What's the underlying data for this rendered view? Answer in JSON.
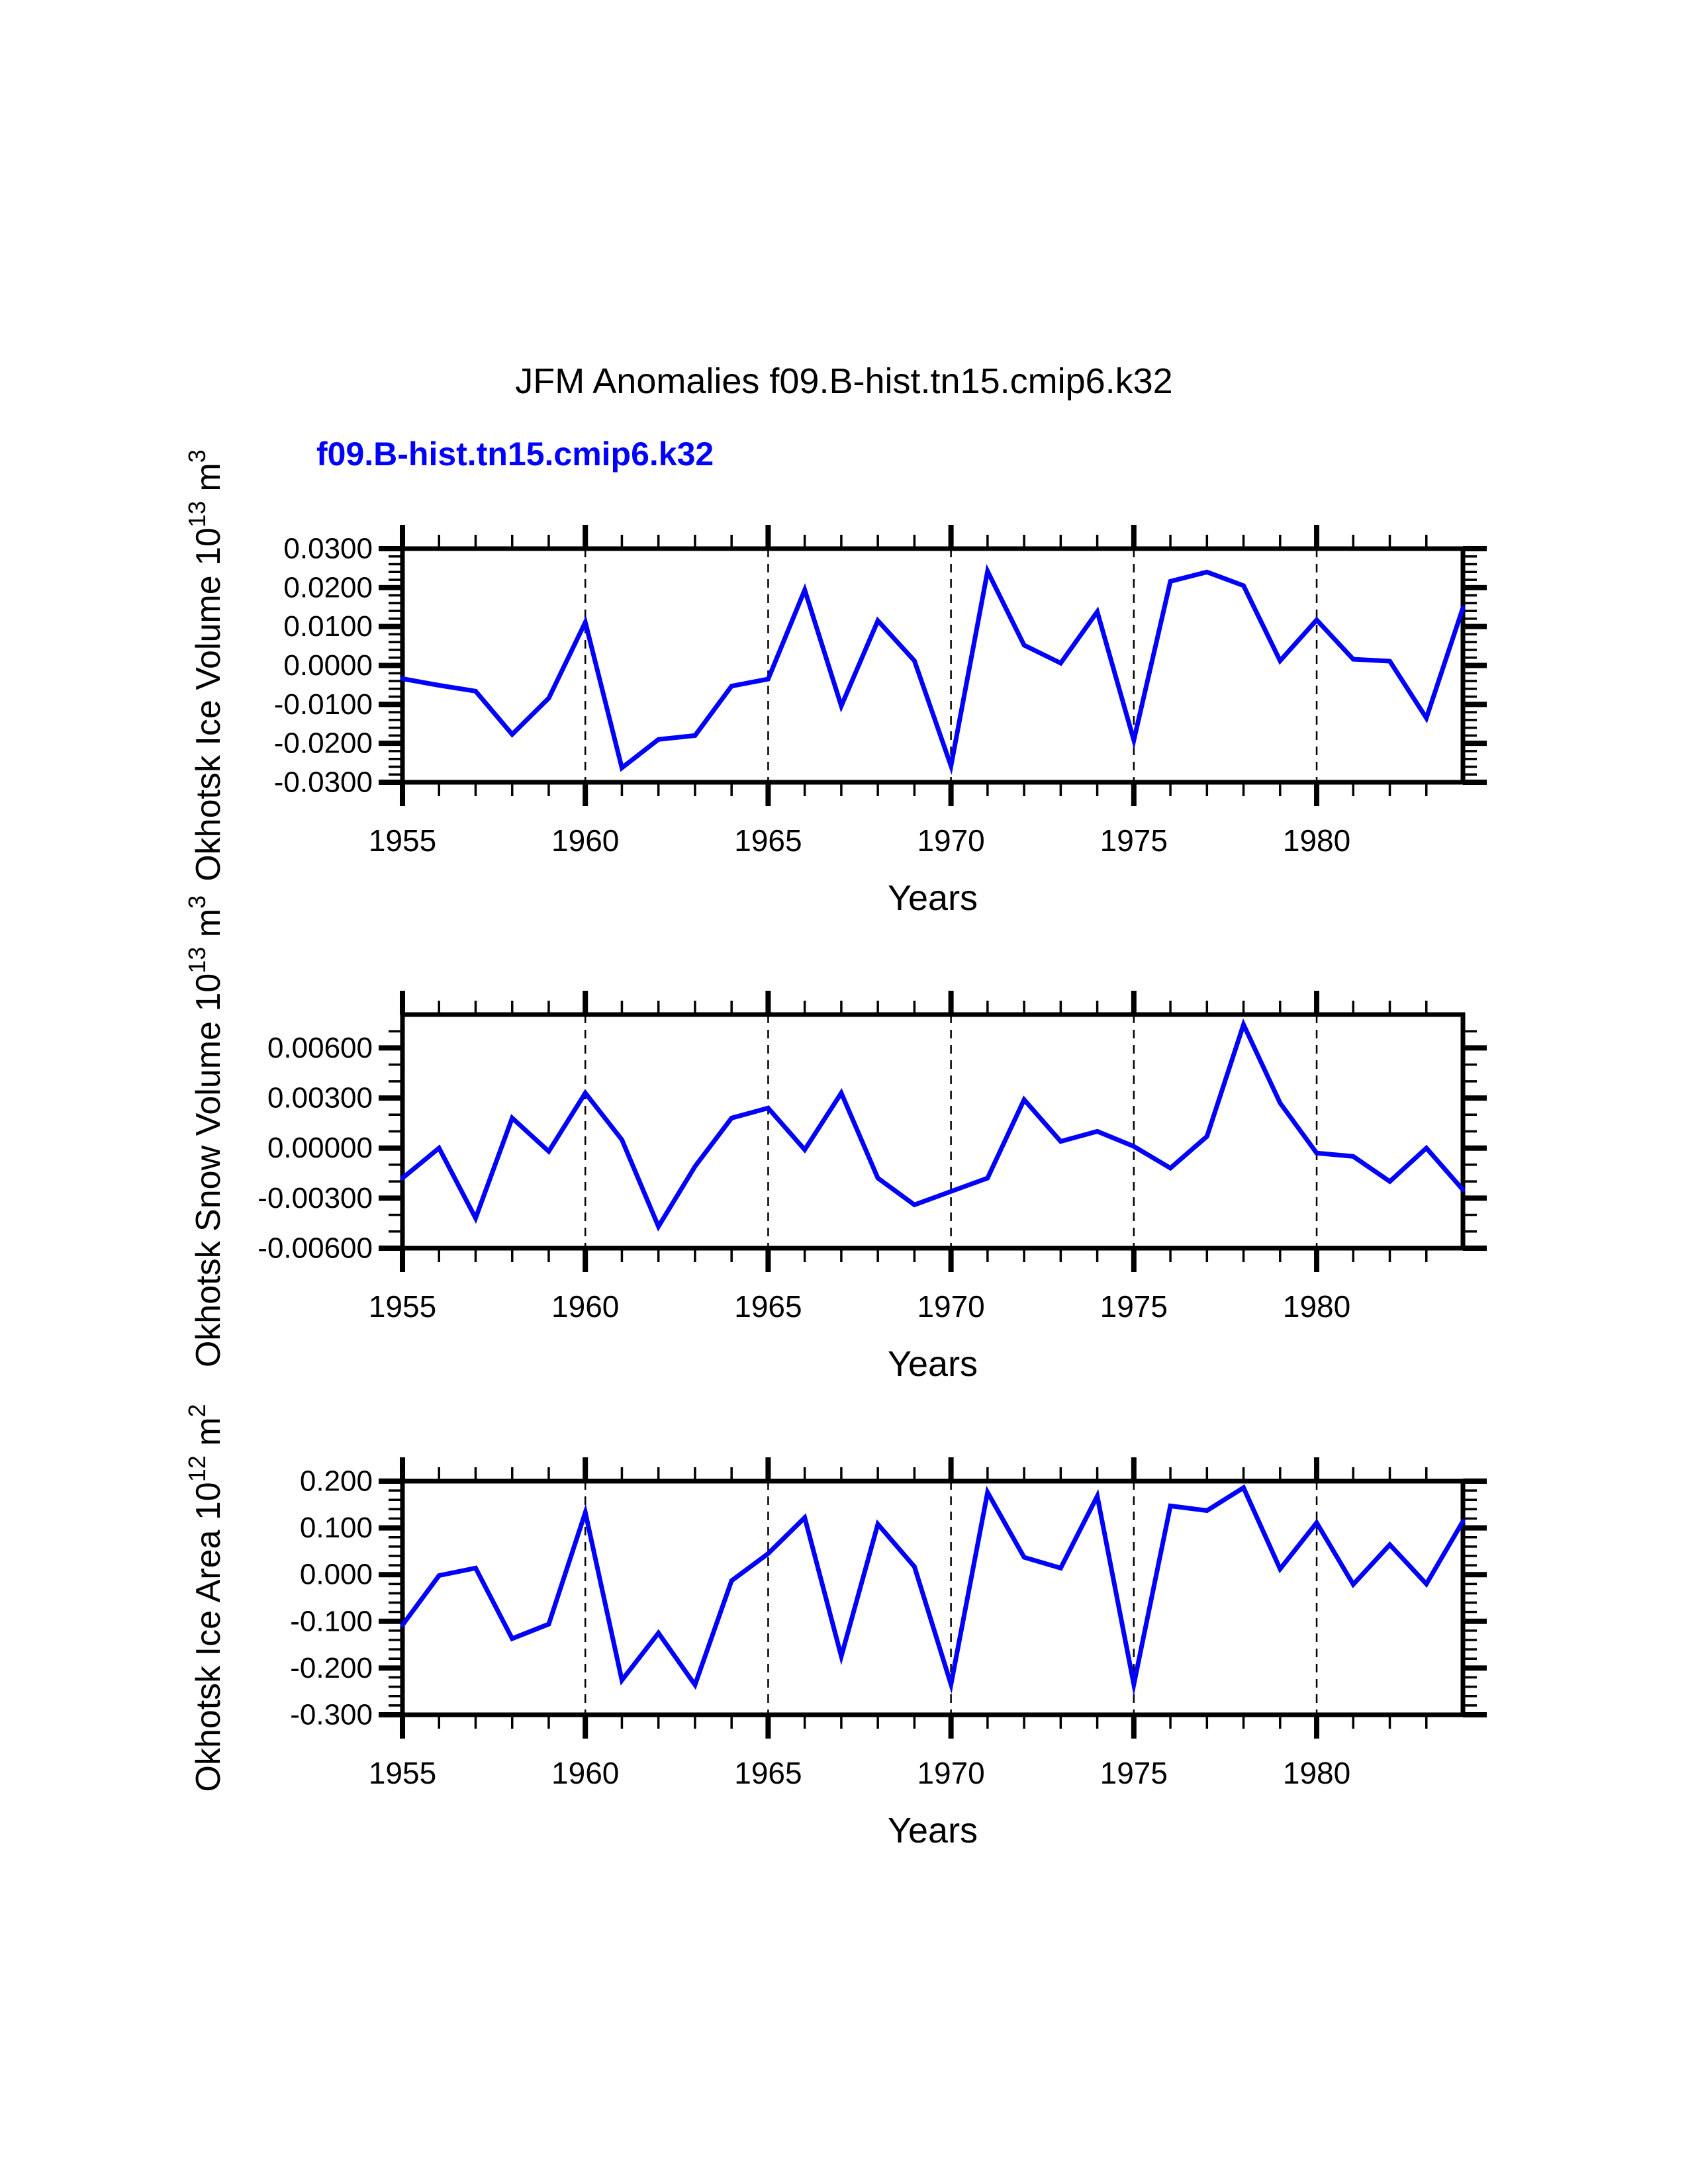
{
  "page": {
    "title": "JFM Anomalies f09.B-hist.tn15.cmip6.k32",
    "subtitle": "f09.B-hist.tn15.cmip6.k32",
    "background_color": "#ffffff",
    "accent_color": "#0000ff",
    "axis_color": "#000000"
  },
  "chart_data": [
    {
      "type": "line",
      "name": "okhotsk-ice-volume",
      "ylabel_parts": [
        {
          "text": "Okhotsk Ice Volume 10"
        },
        {
          "text": "13",
          "sup": true
        },
        {
          "text": " m"
        },
        {
          "text": "3",
          "sup": true
        }
      ],
      "xlabel": "Years",
      "xlim": [
        1955,
        1984
      ],
      "ylim": [
        -0.03,
        0.03
      ],
      "x_major_ticks": [
        1955,
        1960,
        1965,
        1970,
        1975,
        1980
      ],
      "x_tick_labels": [
        "1955",
        "1960",
        "1965",
        "1970",
        "1975",
        "1980"
      ],
      "x_minor_step": 1,
      "y_major_ticks": [
        -0.03,
        -0.02,
        -0.01,
        0,
        0.01,
        0.02,
        0.03
      ],
      "y_tick_labels": [
        "-0.0300",
        "-0.0200",
        "-0.0100",
        "0.0000",
        "0.0100",
        "0.0200",
        "0.0300"
      ],
      "y_minor_step": 0.002,
      "gridlines_x": [
        1960,
        1965,
        1970,
        1975,
        1980
      ],
      "grid": true,
      "legend": "none",
      "line_color": "#0000ff",
      "x": [
        1955,
        1956,
        1957,
        1958,
        1959,
        1960,
        1961,
        1962,
        1963,
        1964,
        1965,
        1966,
        1967,
        1968,
        1969,
        1970,
        1971,
        1972,
        1973,
        1974,
        1975,
        1976,
        1977,
        1978,
        1979,
        1980,
        1981,
        1982,
        1983,
        1984
      ],
      "values": [
        -0.0034,
        -0.0051,
        -0.0066,
        -0.0177,
        -0.0084,
        0.0111,
        -0.0263,
        -0.019,
        -0.018,
        -0.0053,
        -0.0035,
        0.0194,
        -0.0104,
        0.0115,
        0.0012,
        -0.0258,
        0.0242,
        0.0052,
        0.0006,
        0.0138,
        -0.0192,
        0.0216,
        0.024,
        0.0205,
        0.0012,
        0.0117,
        0.0016,
        0.0011,
        -0.0135,
        0.0148
      ]
    },
    {
      "type": "line",
      "name": "okhotsk-snow-volume",
      "ylabel_parts": [
        {
          "text": "Okhotsk Snow Volume 10"
        },
        {
          "text": "13",
          "sup": true
        },
        {
          "text": " m"
        },
        {
          "text": "3",
          "sup": true
        }
      ],
      "xlabel": "Years",
      "xlim": [
        1955,
        1984
      ],
      "ylim": [
        -0.006,
        0.008
      ],
      "x_major_ticks": [
        1955,
        1960,
        1965,
        1970,
        1975,
        1980
      ],
      "x_tick_labels": [
        "1955",
        "1960",
        "1965",
        "1970",
        "1975",
        "1980"
      ],
      "x_minor_step": 1,
      "y_major_ticks": [
        -0.006,
        -0.003,
        0,
        0.003,
        0.006
      ],
      "y_tick_labels": [
        "-0.00600",
        "-0.00300",
        "0.00000",
        "0.00300",
        "0.00600"
      ],
      "y_minor_step": 0.001,
      "gridlines_x": [
        1960,
        1965,
        1970,
        1975,
        1980
      ],
      "grid": true,
      "legend": "none",
      "line_color": "#0000ff",
      "x": [
        1955,
        1956,
        1957,
        1958,
        1959,
        1960,
        1961,
        1962,
        1963,
        1964,
        1965,
        1966,
        1967,
        1968,
        1969,
        1970,
        1971,
        1972,
        1973,
        1974,
        1975,
        1976,
        1977,
        1978,
        1979,
        1980,
        1981,
        1982,
        1983,
        1984
      ],
      "values": [
        -0.0018,
        0.0,
        -0.0042,
        0.0018,
        -0.0002,
        0.0033,
        0.0005,
        -0.0047,
        -0.0011,
        0.0018,
        0.0024,
        -0.0001,
        0.0033,
        -0.0018,
        -0.0034,
        -0.0026,
        -0.0018,
        0.0029,
        0.0004,
        0.001,
        0.0001,
        -0.0012,
        0.0007,
        0.0074,
        0.0027,
        -0.0003,
        -0.0005,
        -0.002,
        0.0,
        -0.0025
      ]
    },
    {
      "type": "line",
      "name": "okhotsk-ice-area",
      "ylabel_parts": [
        {
          "text": "Okhotsk Ice Area 10"
        },
        {
          "text": "12",
          "sup": true
        },
        {
          "text": " m"
        },
        {
          "text": "2",
          "sup": true
        }
      ],
      "xlabel": "Years",
      "xlim": [
        1955,
        1984
      ],
      "ylim": [
        -0.3,
        0.2
      ],
      "x_major_ticks": [
        1955,
        1960,
        1965,
        1970,
        1975,
        1980
      ],
      "x_tick_labels": [
        "1955",
        "1960",
        "1965",
        "1970",
        "1975",
        "1980"
      ],
      "x_minor_step": 1,
      "y_major_ticks": [
        -0.3,
        -0.2,
        -0.1,
        0,
        0.1,
        0.2
      ],
      "y_tick_labels": [
        "-0.300",
        "-0.200",
        "-0.100",
        "0.000",
        "0.100",
        "0.200"
      ],
      "y_minor_step": 0.02,
      "gridlines_x": [
        1960,
        1965,
        1970,
        1975,
        1980
      ],
      "grid": true,
      "legend": "none",
      "line_color": "#0000ff",
      "x": [
        1955,
        1956,
        1957,
        1958,
        1959,
        1960,
        1961,
        1962,
        1963,
        1964,
        1965,
        1966,
        1967,
        1968,
        1969,
        1970,
        1971,
        1972,
        1973,
        1974,
        1975,
        1976,
        1977,
        1978,
        1979,
        1980,
        1981,
        1982,
        1983,
        1984
      ],
      "values": [
        -0.108,
        -0.002,
        0.014,
        -0.137,
        -0.106,
        0.133,
        -0.226,
        -0.125,
        -0.236,
        -0.013,
        0.045,
        0.122,
        -0.175,
        0.108,
        0.017,
        -0.235,
        0.176,
        0.037,
        0.014,
        0.168,
        -0.235,
        0.147,
        0.137,
        0.186,
        0.012,
        0.111,
        -0.021,
        0.064,
        -0.02,
        0.114
      ]
    }
  ]
}
